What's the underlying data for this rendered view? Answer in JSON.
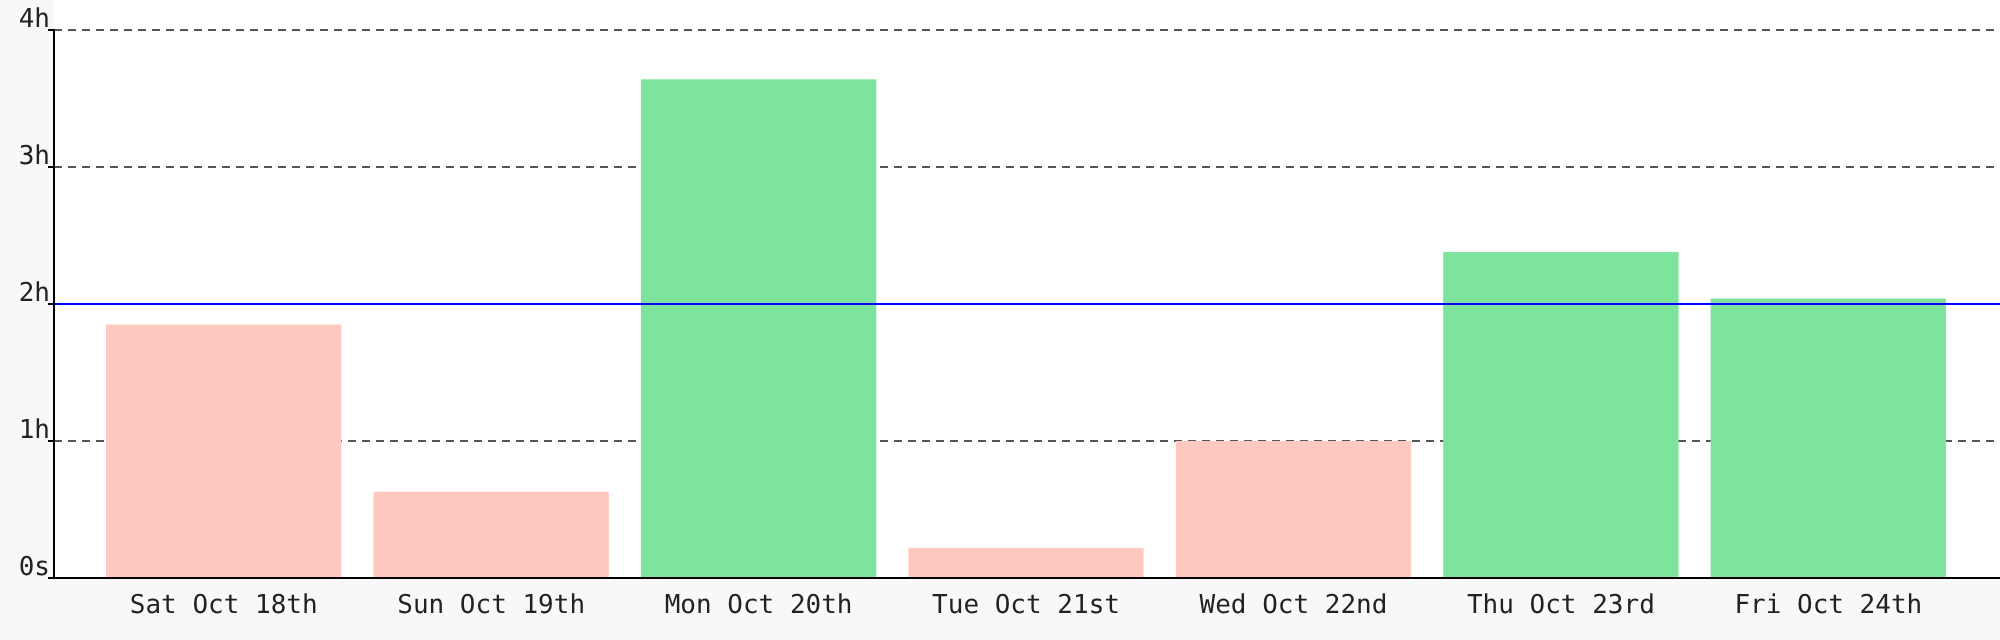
{
  "chart_data": {
    "type": "bar",
    "categories": [
      "Sat Oct 18th",
      "Sun Oct 19th",
      "Mon Oct 20th",
      "Tue Oct 21st",
      "Wed Oct 22nd",
      "Thu Oct 23rd",
      "Fri Oct 24th"
    ],
    "values": [
      1.85,
      0.63,
      3.64,
      0.22,
      1.0,
      2.38,
      2.04
    ],
    "colors": [
      "#ffc9c0",
      "#ffc9c0",
      "#7ee39c",
      "#ffc9c0",
      "#ffc9c0",
      "#7ee39c",
      "#7ee39c"
    ],
    "ylim": [
      0,
      4
    ],
    "yticks": [
      {
        "value": 0,
        "label": "0s"
      },
      {
        "value": 1,
        "label": "1h"
      },
      {
        "value": 2,
        "label": "2h"
      },
      {
        "value": 3,
        "label": "3h"
      },
      {
        "value": 4,
        "label": "4h"
      }
    ],
    "grid": "y",
    "ref_lines": [
      {
        "axis": "y",
        "value": 2,
        "color": "#0000ff"
      }
    ]
  }
}
